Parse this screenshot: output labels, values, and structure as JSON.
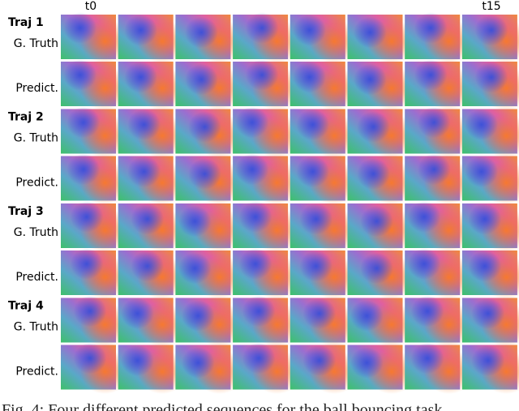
{
  "header": {
    "t_start": "t0",
    "t_end": "t15"
  },
  "trajectories": [
    {
      "title": "Traj 1",
      "rows": [
        "G. Truth",
        "Predict."
      ]
    },
    {
      "title": "Traj 2",
      "rows": [
        "G. Truth",
        "Predict."
      ]
    },
    {
      "title": "Traj 3",
      "rows": [
        "G. Truth",
        "Predict."
      ]
    },
    {
      "title": "Traj 4",
      "rows": [
        "G. Truth",
        "Predict."
      ]
    }
  ],
  "caption": "Fig. 4: Four different predicted sequences for the ball bouncing task"
}
